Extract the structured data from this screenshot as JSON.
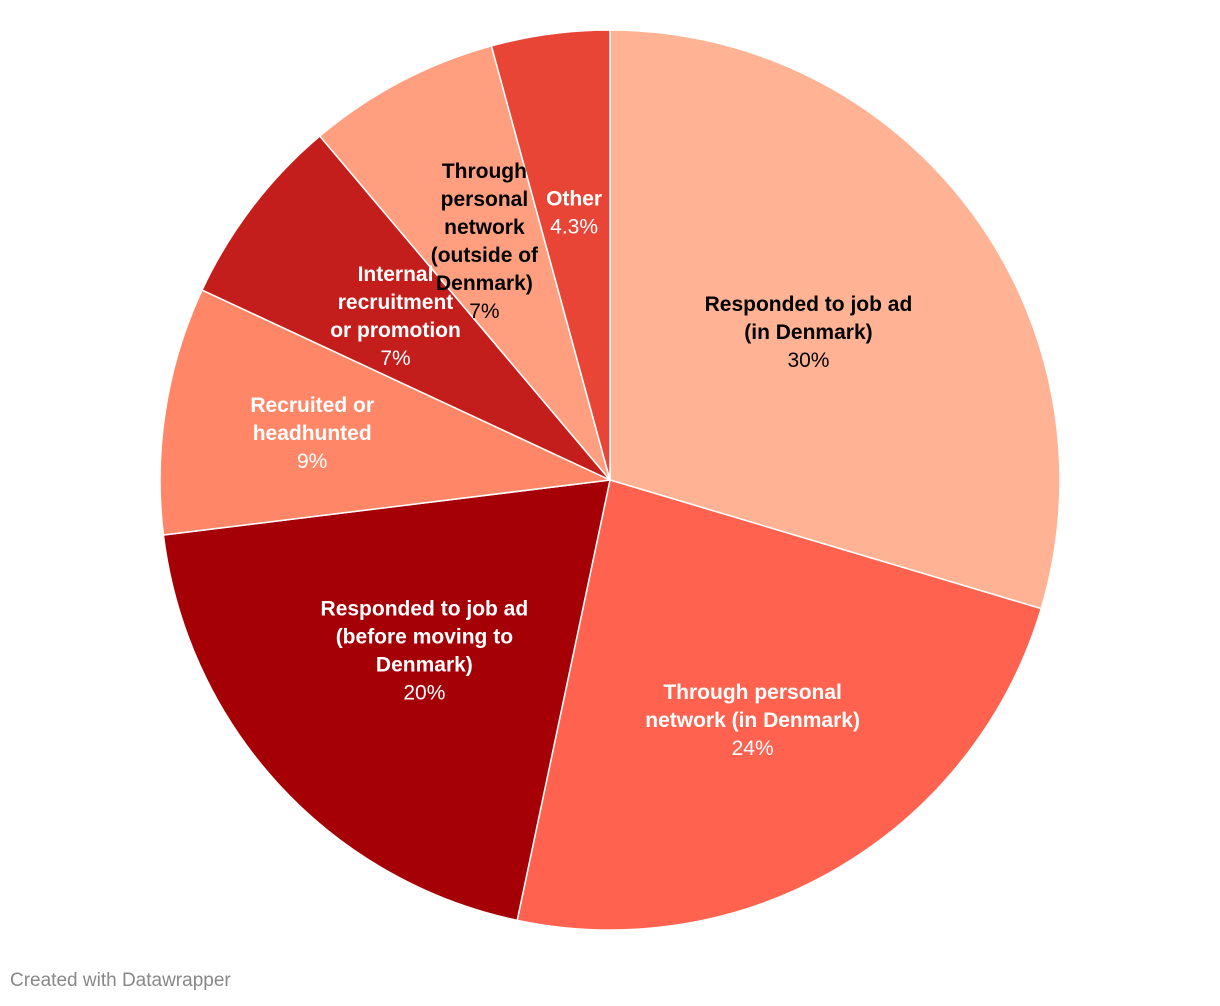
{
  "chart_data": {
    "type": "pie",
    "slices": [
      {
        "label": [
          "Responded to job ad",
          "(in Denmark)"
        ],
        "value": 30,
        "display": "30%",
        "color": "#ffb394",
        "text_color": "#000000"
      },
      {
        "label": [
          "Through personal",
          "network (in Denmark)"
        ],
        "value": 24,
        "display": "24%",
        "color": "#ff624f",
        "text_color": "#ffffff"
      },
      {
        "label": [
          "Responded to job ad",
          "(before moving to",
          "Denmark)"
        ],
        "value": 20,
        "display": "20%",
        "color": "#a50006",
        "text_color": "#ffffff"
      },
      {
        "label": [
          "Recruited or",
          "headhunted"
        ],
        "value": 9,
        "display": "9%",
        "color": "#ff8768",
        "text_color": "#ffffff"
      },
      {
        "label": [
          "Internal",
          "recruitment",
          "or promotion"
        ],
        "value": 7,
        "display": "7%",
        "color": "#c41e1c",
        "text_color": "#ffffff"
      },
      {
        "label": [
          "Through",
          "personal",
          "network",
          "(outside of",
          "Denmark)"
        ],
        "value": 7,
        "display": "7%",
        "color": "#ff9f80",
        "text_color": "#000000"
      },
      {
        "label": [
          "Other"
        ],
        "value": 4.3,
        "display": "4.3%",
        "color": "#e84536",
        "text_color": "#ffffff"
      }
    ]
  },
  "footer": {
    "credit": "Created with Datawrapper"
  }
}
